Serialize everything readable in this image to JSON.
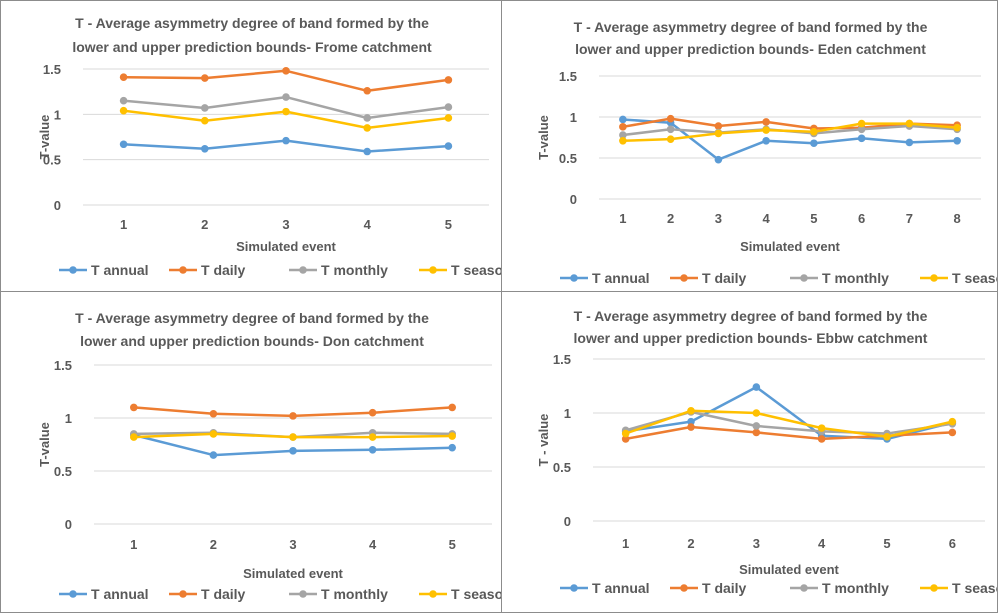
{
  "chart_data": [
    {
      "type": "line",
      "title_lines": [
        "T - Average asymmetry degree of band  formed by the",
        "lower and upper prediction bounds- Frome  catchment"
      ],
      "xlabel": "Simulated event",
      "ylabel": "T-value",
      "categories": [
        "1",
        "2",
        "3",
        "4",
        "5"
      ],
      "ylim": [
        0,
        1.5
      ],
      "yticks": [
        "0",
        "0.5",
        "1",
        "1.5"
      ],
      "grid": true,
      "legend": "bottom",
      "series": [
        {
          "name": "T annual",
          "color": "#5b9bd5",
          "values": [
            0.67,
            0.62,
            0.71,
            0.59,
            0.65
          ]
        },
        {
          "name": "T daily",
          "color": "#ed7d31",
          "values": [
            1.41,
            1.4,
            1.48,
            1.26,
            1.38
          ]
        },
        {
          "name": "T monthly",
          "color": "#a5a5a5",
          "values": [
            1.15,
            1.07,
            1.19,
            0.96,
            1.08
          ]
        },
        {
          "name": "T seasonal",
          "color": "#ffc000",
          "values": [
            1.04,
            0.93,
            1.03,
            0.85,
            0.96
          ]
        }
      ]
    },
    {
      "type": "line",
      "title_lines": [
        "T - Average asymmetry degree of band formed by the",
        "lower and upper prediction bounds- Eden catchment"
      ],
      "xlabel": "Simulated event",
      "ylabel": "T-value",
      "categories": [
        "1",
        "2",
        "3",
        "4",
        "5",
        "6",
        "7",
        "8"
      ],
      "ylim": [
        0,
        1.5
      ],
      "yticks": [
        "0",
        "0.5",
        "1",
        "1.5"
      ],
      "grid": true,
      "legend": "bottom",
      "series": [
        {
          "name": "T annual",
          "color": "#5b9bd5",
          "values": [
            0.97,
            0.93,
            0.48,
            0.71,
            0.68,
            0.74,
            0.69,
            0.71
          ]
        },
        {
          "name": "T daily",
          "color": "#ed7d31",
          "values": [
            0.88,
            0.98,
            0.89,
            0.94,
            0.86,
            0.87,
            0.92,
            0.9
          ]
        },
        {
          "name": "T monthly",
          "color": "#a5a5a5",
          "values": [
            0.78,
            0.85,
            0.81,
            0.85,
            0.8,
            0.85,
            0.89,
            0.85
          ]
        },
        {
          "name": "T seasonal",
          "color": "#ffc000",
          "values": [
            0.71,
            0.73,
            0.8,
            0.84,
            0.82,
            0.92,
            0.92,
            0.87
          ]
        }
      ]
    },
    {
      "type": "line",
      "title_lines": [
        "T - Average asymmetry degree of band formed by the",
        "lower and upper prediction bounds- Don catchment"
      ],
      "xlabel": "Simulated event",
      "ylabel": "T-value",
      "categories": [
        "1",
        "2",
        "3",
        "4",
        "5"
      ],
      "ylim": [
        0,
        1.5
      ],
      "yticks": [
        "0",
        "0.5",
        "1",
        "1.5"
      ],
      "grid": true,
      "legend": "bottom",
      "series": [
        {
          "name": "T annual",
          "color": "#5b9bd5",
          "values": [
            0.84,
            0.65,
            0.69,
            0.7,
            0.72
          ]
        },
        {
          "name": "T daily",
          "color": "#ed7d31",
          "values": [
            1.1,
            1.04,
            1.02,
            1.05,
            1.1
          ]
        },
        {
          "name": "T monthly",
          "color": "#a5a5a5",
          "values": [
            0.85,
            0.86,
            0.82,
            0.86,
            0.85
          ]
        },
        {
          "name": "T seasonal",
          "color": "#ffc000",
          "values": [
            0.82,
            0.85,
            0.82,
            0.82,
            0.83
          ]
        }
      ]
    },
    {
      "type": "line",
      "title_lines": [
        "T - Average asymmetry degree of band formed by the",
        "lower and upper prediction bounds- Ebbw catchment"
      ],
      "xlabel": "Simulated event",
      "ylabel": "T - value",
      "categories": [
        "1",
        "2",
        "3",
        "4",
        "5",
        "6"
      ],
      "ylim": [
        0,
        1.5
      ],
      "yticks": [
        "0",
        "0.5",
        "1",
        "1.5"
      ],
      "grid": true,
      "legend": "bottom",
      "series": [
        {
          "name": "T annual",
          "color": "#5b9bd5",
          "values": [
            0.83,
            0.92,
            1.24,
            0.79,
            0.76,
            0.91
          ]
        },
        {
          "name": "T daily",
          "color": "#ed7d31",
          "values": [
            0.76,
            0.87,
            0.82,
            0.76,
            0.79,
            0.82
          ]
        },
        {
          "name": "T monthly",
          "color": "#a5a5a5",
          "values": [
            0.84,
            1.01,
            0.88,
            0.83,
            0.81,
            0.9
          ]
        },
        {
          "name": "T seasonal",
          "color": "#ffc000",
          "values": [
            0.81,
            1.02,
            1.0,
            0.86,
            0.78,
            0.92
          ]
        }
      ]
    }
  ]
}
